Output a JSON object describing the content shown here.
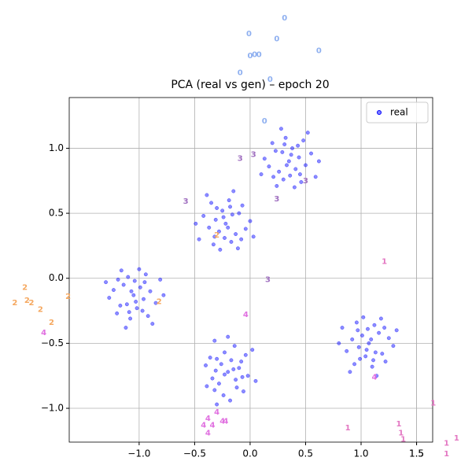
{
  "chart_data": {
    "type": "scatter",
    "title": "PCA (real vs gen) – epoch 20",
    "xlim": [
      -1.63,
      1.645
    ],
    "ylim": [
      -1.26,
      1.39
    ],
    "xticks": [
      1.5,
      {
        "value": -1,
        "label": "−1.0"
      },
      {
        "value": -0.5,
        "label": "−0.5"
      },
      {
        "value": 0,
        "label": "0.0"
      },
      0.5,
      {
        "value": 1,
        "label": "1.0"
      },
      1.5
    ],
    "yticks": [
      {
        "value": -1,
        "label": "−1.0"
      },
      {
        "value": -0.5,
        "label": "−0.5"
      },
      {
        "value": 0,
        "label": "0.0"
      },
      0.5,
      {
        "value": 1,
        "label": "1.0"
      }
    ],
    "grid": true,
    "legend": "upper right",
    "series": [
      {
        "name": "real",
        "color": "#0000ff",
        "x": [
          0.37,
          0.23,
          0.5,
          0.3,
          0.43,
          0.17,
          0.45,
          0.32,
          0.55,
          0.26,
          0.4,
          0.2,
          0.48,
          0.35,
          0.13,
          0.59,
          0.28,
          0.41,
          0.24,
          0.52,
          0.33,
          0.44,
          0.21,
          0.38,
          0.46,
          0.29,
          0.62,
          0.1,
          0.36,
          0.31,
          -0.24,
          -0.1,
          -0.37,
          -0.17,
          -0.3,
          -0.04,
          -0.32,
          -0.19,
          -0.42,
          -0.13,
          -0.27,
          -0.07,
          -0.35,
          -0.22,
          0.0,
          -0.46,
          -0.15,
          -0.28,
          -0.11,
          -0.39,
          -0.2,
          -0.31,
          -0.08,
          -0.25,
          -0.33,
          -0.16,
          -0.49,
          0.03,
          -0.23,
          -0.18,
          -1.03,
          -1.17,
          -0.9,
          -1.1,
          -0.97,
          -1.23,
          -0.95,
          -1.08,
          -0.85,
          -1.14,
          -1.0,
          -1.2,
          -0.92,
          -1.05,
          -1.27,
          -0.81,
          -1.12,
          -0.99,
          -1.16,
          -0.88,
          -1.07,
          -0.96,
          -1.19,
          -1.02,
          -0.94,
          -1.11,
          -0.78,
          -1.3,
          -1.04,
          -1.09,
          -0.15,
          -0.12,
          -0.23,
          -0.34,
          -0.08,
          -0.24,
          -0.3,
          -0.02,
          -0.14,
          -0.28,
          -0.4,
          -0.06,
          -0.04,
          -0.2,
          -0.18,
          -0.32,
          0.05,
          -0.26,
          -0.39,
          0.02,
          -0.23,
          -0.17,
          -0.32,
          -0.1,
          -0.36,
          -0.13,
          -0.2,
          -0.3,
          -0.31,
          -0.07,
          1.05,
          1.19,
          0.92,
          1.12,
          0.99,
          1.25,
          0.97,
          1.1,
          0.87,
          1.16,
          1.02,
          1.22,
          0.94,
          1.07,
          1.29,
          0.83,
          1.14,
          1.01,
          1.18,
          0.9,
          1.09,
          0.98,
          1.21,
          1.04,
          0.96,
          1.13,
          0.8,
          1.32,
          1.06,
          1.11
        ],
        "y": [
          0.95,
          0.98,
          0.87,
          0.76,
          1.02,
          0.86,
          0.8,
          1.08,
          0.96,
          0.82,
          0.7,
          1.04,
          1.06,
          0.9,
          0.92,
          0.78,
          1.15,
          0.84,
          0.71,
          1.12,
          0.87,
          0.93,
          0.78,
          1.0,
          0.74,
          0.97,
          0.9,
          0.8,
          0.79,
          1.03,
          0.47,
          0.5,
          0.39,
          0.28,
          0.54,
          0.38,
          0.32,
          0.6,
          0.48,
          0.34,
          0.22,
          0.56,
          0.58,
          0.42,
          0.44,
          0.3,
          0.67,
          0.36,
          0.23,
          0.64,
          0.39,
          0.45,
          0.3,
          0.52,
          0.26,
          0.49,
          0.42,
          0.32,
          0.31,
          0.55,
          -0.18,
          -0.21,
          -0.1,
          0.01,
          -0.25,
          -0.09,
          -0.03,
          -0.31,
          -0.19,
          -0.05,
          0.07,
          -0.27,
          -0.29,
          -0.13,
          -0.15,
          -0.01,
          -0.38,
          -0.07,
          0.06,
          -0.35,
          -0.1,
          -0.16,
          -0.01,
          -0.23,
          0.03,
          -0.2,
          -0.13,
          -0.03,
          -0.02,
          -0.26,
          -0.7,
          -0.84,
          -0.57,
          -0.77,
          -0.64,
          -0.9,
          -0.62,
          -0.75,
          -0.52,
          -0.81,
          -0.67,
          -0.87,
          -0.59,
          -0.72,
          -0.94,
          -0.48,
          -0.79,
          -0.66,
          -0.83,
          -0.55,
          -0.74,
          -0.63,
          -0.86,
          -0.69,
          -0.61,
          -0.78,
          -0.45,
          -0.97,
          -0.71,
          -0.76,
          -0.55,
          -0.58,
          -0.47,
          -0.36,
          -0.62,
          -0.46,
          -0.4,
          -0.68,
          -0.56,
          -0.42,
          -0.3,
          -0.64,
          -0.66,
          -0.5,
          -0.52,
          -0.38,
          -0.75,
          -0.44,
          -0.31,
          -0.72,
          -0.47,
          -0.53,
          -0.38,
          -0.6,
          -0.34,
          -0.57,
          -0.5,
          -0.4,
          -0.39,
          -0.63
        ]
      }
    ],
    "gen_labels": [
      {
        "text": "0",
        "x": 0.31,
        "y": 2.0,
        "color": "#8fb0f0"
      },
      {
        "text": "0",
        "x": -0.01,
        "y": 1.88,
        "color": "#8fb0f0"
      },
      {
        "text": "0",
        "x": 0.24,
        "y": 1.84,
        "color": "#8fb0f0"
      },
      {
        "text": "0",
        "x": 0.0,
        "y": 1.71,
        "color": "#8fb0f0"
      },
      {
        "text": "0",
        "x": 0.04,
        "y": 1.72,
        "color": "#8fb0f0"
      },
      {
        "text": "0",
        "x": 0.08,
        "y": 1.72,
        "color": "#8fb0f0"
      },
      {
        "text": "0",
        "x": 0.62,
        "y": 1.75,
        "color": "#8fb0f0"
      },
      {
        "text": "0",
        "x": -0.09,
        "y": 1.58,
        "color": "#8fb0f0"
      },
      {
        "text": "0",
        "x": 0.18,
        "y": 1.53,
        "color": "#8fb0f0"
      },
      {
        "text": "0",
        "x": 0.13,
        "y": 1.21,
        "color": "#8fb0f0"
      },
      {
        "text": "1",
        "x": 1.21,
        "y": 0.13,
        "color": "#e377c2"
      },
      {
        "text": "1",
        "x": 0.88,
        "y": -1.15,
        "color": "#e377c2"
      },
      {
        "text": "1",
        "x": 1.34,
        "y": -1.12,
        "color": "#e377c2"
      },
      {
        "text": "1",
        "x": 1.36,
        "y": -1.19,
        "color": "#e377c2"
      },
      {
        "text": "1",
        "x": 1.38,
        "y": -1.24,
        "color": "#e377c2"
      },
      {
        "text": "1",
        "x": 1.65,
        "y": -0.96,
        "color": "#e377c2"
      },
      {
        "text": "1",
        "x": 1.77,
        "y": -1.27,
        "color": "#e377c2"
      },
      {
        "text": "1",
        "x": 1.86,
        "y": -1.23,
        "color": "#e377c2"
      },
      {
        "text": "1",
        "x": 1.77,
        "y": -1.35,
        "color": "#e377c2"
      },
      {
        "text": "2",
        "x": -2.03,
        "y": -0.07,
        "color": "#f5a860"
      },
      {
        "text": "2",
        "x": -2.12,
        "y": -0.19,
        "color": "#f5a860"
      },
      {
        "text": "2",
        "x": -2.01,
        "y": -0.17,
        "color": "#f5a860"
      },
      {
        "text": "2",
        "x": -1.97,
        "y": -0.19,
        "color": "#f5a860"
      },
      {
        "text": "2",
        "x": -1.89,
        "y": -0.24,
        "color": "#f5a860"
      },
      {
        "text": "2",
        "x": -1.79,
        "y": -0.34,
        "color": "#f5a860"
      },
      {
        "text": "2",
        "x": -1.64,
        "y": -0.14,
        "color": "#f5a860"
      },
      {
        "text": "2",
        "x": -0.82,
        "y": -0.18,
        "color": "#f5a860"
      },
      {
        "text": "2",
        "x": -0.3,
        "y": 0.33,
        "color": "#f5a860"
      },
      {
        "text": "3",
        "x": -0.58,
        "y": 0.59,
        "color": "#a070c0"
      },
      {
        "text": "3",
        "x": -0.09,
        "y": 0.92,
        "color": "#a070c0"
      },
      {
        "text": "3",
        "x": 0.03,
        "y": 0.95,
        "color": "#a070c0"
      },
      {
        "text": "3",
        "x": 0.24,
        "y": 0.61,
        "color": "#a070c0"
      },
      {
        "text": "3",
        "x": 0.16,
        "y": -0.01,
        "color": "#a070c0"
      },
      {
        "text": "3",
        "x": 0.5,
        "y": 0.75,
        "color": "#a070c0"
      },
      {
        "text": "4",
        "x": -0.04,
        "y": -0.28,
        "color": "#e070e0"
      },
      {
        "text": "4",
        "x": -1.86,
        "y": -0.42,
        "color": "#e070e0"
      },
      {
        "text": "4",
        "x": -0.42,
        "y": -1.13,
        "color": "#e070e0"
      },
      {
        "text": "4",
        "x": -0.38,
        "y": -1.08,
        "color": "#e070e0"
      },
      {
        "text": "4",
        "x": -0.34,
        "y": -1.13,
        "color": "#e070e0"
      },
      {
        "text": "4",
        "x": -0.3,
        "y": -1.03,
        "color": "#e070e0"
      },
      {
        "text": "4",
        "x": -0.25,
        "y": -1.1,
        "color": "#e070e0"
      },
      {
        "text": "4",
        "x": -0.22,
        "y": -1.1,
        "color": "#e070e0"
      },
      {
        "text": "4",
        "x": -0.38,
        "y": -1.19,
        "color": "#e070e0"
      },
      {
        "text": "4",
        "x": 1.12,
        "y": -0.76,
        "color": "#e070e0"
      }
    ]
  }
}
